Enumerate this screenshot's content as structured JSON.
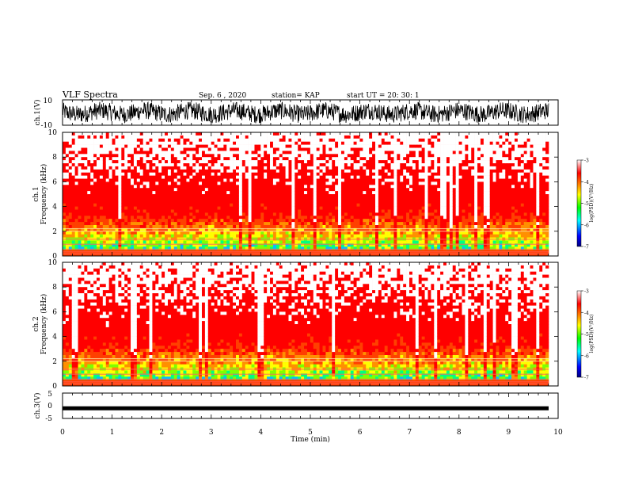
{
  "header": {
    "title": "VLF Spectra",
    "date": "Sep. 6 , 2020",
    "station": "station= KAP",
    "start": "start UT =  20: 30: 1"
  },
  "chart_data": [
    {
      "type": "line",
      "ylabel": "ch.1(V)",
      "ylim": [
        -10,
        10
      ],
      "yticks": [
        "10",
        "-10"
      ],
      "xlim": [
        0,
        10
      ],
      "description_level": "noisy waveform oscillating roughly between -8 and 8 V"
    },
    {
      "type": "heatmap",
      "ylabel_line1": "ch.1",
      "ylabel_line2": "Frequency (kHz)",
      "ylim": [
        0,
        10
      ],
      "yticks": [
        "0",
        "2",
        "4",
        "6",
        "8",
        "10"
      ],
      "xlim": [
        0,
        10
      ],
      "colorbar": {
        "label": "log(PSD)(V²/Hz)",
        "range": [
          -7,
          -3
        ],
        "ticks": [
          "-3",
          "-4",
          "-5",
          "-6",
          "-7"
        ]
      }
    },
    {
      "type": "heatmap",
      "ylabel_line1": "ch.2",
      "ylabel_line2": "Frequency (kHz)",
      "ylim": [
        0,
        10
      ],
      "yticks": [
        "0",
        "2",
        "4",
        "6",
        "8",
        "10"
      ],
      "xlim": [
        0,
        10
      ],
      "colorbar": {
        "label": "log(PSD)(V²/Hz)",
        "range": [
          -7,
          -3
        ],
        "ticks": [
          "-3",
          "-4",
          "-5",
          "-6",
          "-7"
        ]
      }
    },
    {
      "type": "line",
      "ylabel": "ch.3(V)",
      "ylim": [
        -5,
        5
      ],
      "yticks": [
        "5",
        "0",
        "-5"
      ],
      "xlim": [
        0,
        10
      ],
      "level": -1
    }
  ],
  "xaxis": {
    "label": "Time (min)",
    "ticks": [
      "0",
      "1",
      "2",
      "3",
      "4",
      "5",
      "6",
      "7",
      "8",
      "9",
      "10"
    ]
  },
  "colors": {
    "colormap": [
      "#000080",
      "#0000ff",
      "#00ffff",
      "#00ff00",
      "#ffff00",
      "#ff8000",
      "#ff0000",
      "#ffffff"
    ]
  }
}
